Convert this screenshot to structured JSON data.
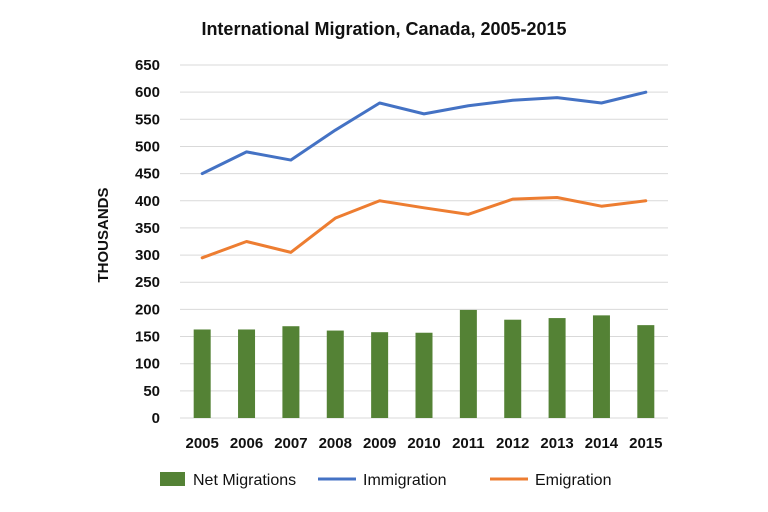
{
  "chart_data": {
    "type": "bar+line",
    "title": "International Migration, Canada, 2005-2015",
    "ylabel": "THOUSANDS",
    "xlabel": "",
    "ylim": [
      0,
      650
    ],
    "yticks": [
      0,
      50,
      100,
      150,
      200,
      250,
      300,
      350,
      400,
      450,
      500,
      550,
      600,
      650
    ],
    "grid": true,
    "legend_position": "bottom",
    "categories": [
      "2005",
      "2006",
      "2007",
      "2008",
      "2009",
      "2010",
      "2011",
      "2012",
      "2013",
      "2014",
      "2015"
    ],
    "series": [
      {
        "name": "Net Migrations",
        "kind": "bar",
        "color": "#548235",
        "values": [
          163,
          163,
          169,
          161,
          158,
          157,
          199,
          181,
          184,
          189,
          171
        ]
      },
      {
        "name": "Immigration",
        "kind": "line",
        "color": "#4472c4",
        "values": [
          450,
          490,
          475,
          530,
          580,
          560,
          575,
          585,
          590,
          580,
          600
        ]
      },
      {
        "name": "Emigration",
        "kind": "line",
        "color": "#ed7d31",
        "values": [
          295,
          325,
          305,
          368,
          400,
          387,
          375,
          403,
          406,
          390,
          400
        ]
      }
    ]
  }
}
